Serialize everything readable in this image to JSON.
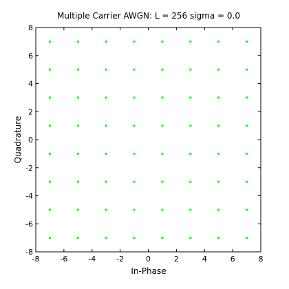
{
  "chart_data": {
    "type": "scatter",
    "title": "Multiple Carrier AWGN: L = 256 sigma = 0.0",
    "xlabel": "In-Phase",
    "ylabel": "Quadrature",
    "xlim": [
      -8,
      8
    ],
    "ylim": [
      -8,
      8
    ],
    "xticks": [
      -8,
      -6,
      -4,
      -2,
      0,
      2,
      4,
      6,
      8
    ],
    "yticks": [
      -8,
      -6,
      -4,
      -2,
      0,
      2,
      4,
      6,
      8
    ],
    "grid": false,
    "marker_color": "#00ff00",
    "series": [
      {
        "x_levels": [
          -7,
          -5,
          -3,
          -1,
          1,
          3,
          5,
          7
        ],
        "y_levels": [
          -7,
          -5,
          -3,
          -1,
          1,
          3,
          5,
          7
        ]
      }
    ]
  }
}
